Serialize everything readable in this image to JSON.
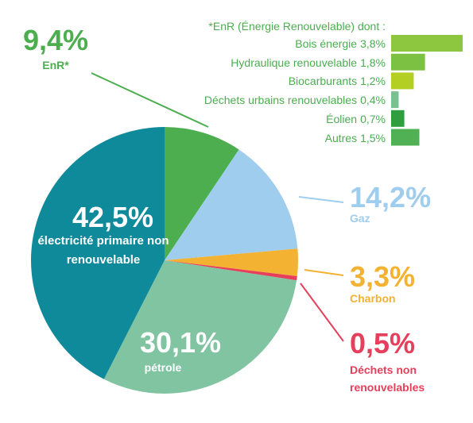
{
  "chart_data": [
    {
      "type": "pie",
      "categories": [
        "EnR*",
        "Gaz",
        "Charbon",
        "Déchets non renouvelables",
        "pétrole",
        "électricité primaire non renouvelable"
      ],
      "values": [
        9.4,
        14.2,
        3.3,
        0.5,
        30.1,
        42.5
      ],
      "value_labels": [
        "9,4%",
        "14,2%",
        "3,3%",
        "0,5%",
        "30,1%",
        "42,5%"
      ],
      "colors": [
        "#4cae4f",
        "#9fcdee",
        "#f4b233",
        "#e63f5b",
        "#80c4a2",
        "#0f8a9b"
      ]
    },
    {
      "type": "bar",
      "title": "*EnR (Énergie Renouvelable) dont :",
      "categories": [
        "Bois énergie",
        "Hydraulique renouvelable",
        "Biocarburants",
        "Déchets urbains renouvelables",
        "Éolien",
        "Autres"
      ],
      "values": [
        3.8,
        1.8,
        1.2,
        0.4,
        0.7,
        1.5
      ],
      "value_labels": [
        "3,8%",
        "1,8%",
        "1,2%",
        "0,4%",
        "0,7%",
        "1,5%"
      ],
      "colors": [
        "#8dc63f",
        "#7cc142",
        "#b3cf24",
        "#78c291",
        "#2f9e3e",
        "#4fb153"
      ]
    }
  ]
}
